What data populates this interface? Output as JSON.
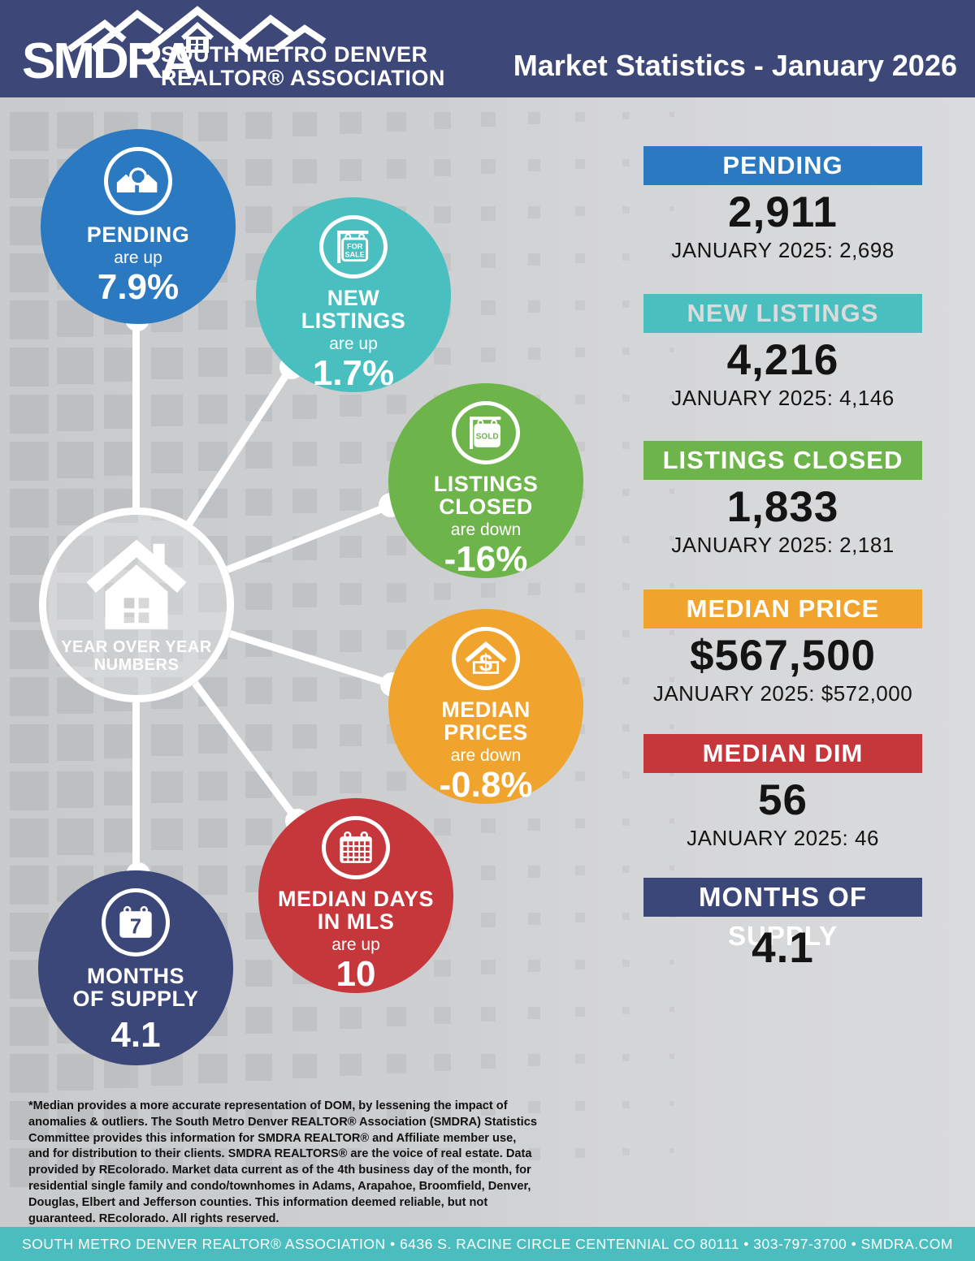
{
  "header": {
    "logo_text": "SMDRA",
    "org_line1": "SOUTH METRO DENVER",
    "org_line2": "REALTOR® ASSOCIATION",
    "title": "Market Statistics - January 2026"
  },
  "hub": {
    "icon": "house-icon",
    "label_line1": "YEAR OVER YEAR",
    "label_line2": "NUMBERS"
  },
  "bubbles": [
    {
      "id": "pending",
      "label1": "PENDING",
      "label2": "",
      "direction": "are up",
      "value": "7.9%",
      "color": "#2b7ac1",
      "icon": "houses-magnifier-icon"
    },
    {
      "id": "new-listings",
      "label1": "NEW",
      "label2": "LISTINGS",
      "direction": "are up",
      "value": "1.7%",
      "color": "#4abfc0",
      "icon": "for-sale-sign-icon",
      "sign_line1": "FOR",
      "sign_line2": "SALE"
    },
    {
      "id": "listings-closed",
      "label1": "LISTINGS",
      "label2": "CLOSED",
      "direction": "are down",
      "value": "-16%",
      "color": "#6db44a",
      "icon": "sold-sign-icon",
      "sign_text": "SOLD"
    },
    {
      "id": "median-prices",
      "label1": "MEDIAN",
      "label2": "PRICES",
      "direction": "are down",
      "value": "-0.8%",
      "color": "#f0a42e",
      "icon": "house-dollar-icon",
      "dollar": "$"
    },
    {
      "id": "median-days",
      "label1": "MEDIAN DAYS",
      "label2": "IN MLS",
      "direction": "are up",
      "value": "10",
      "color": "#c6373c",
      "icon": "calendar-grid-icon"
    },
    {
      "id": "months-of-supply",
      "label1": "MONTHS",
      "label2": "OF SUPPLY",
      "direction": "",
      "value": "4.1",
      "color": "#3b4679",
      "icon": "calendar-7-icon",
      "icon_text": "7"
    }
  ],
  "stats": [
    {
      "title": "PENDING",
      "value": "2,911",
      "prior": "JANUARY 2025: 2,698",
      "color": "#2b7ac1"
    },
    {
      "title": "NEW LISTINGS",
      "value": "4,216",
      "prior": "JANUARY 2025: 4,146",
      "color": "#4abfc0"
    },
    {
      "title": "LISTINGS CLOSED",
      "value": "1,833",
      "prior": "JANUARY 2025: 2,181",
      "color": "#6db44a"
    },
    {
      "title": "MEDIAN PRICE",
      "value": "$567,500",
      "prior": "JANUARY 2025: $572,000",
      "color": "#f0a42e"
    },
    {
      "title": "MEDIAN DIM",
      "value": "56",
      "prior": "JANUARY 2025: 46",
      "color": "#c6373c"
    },
    {
      "title": "MONTHS OF SUPPLY",
      "value": "4.1",
      "prior": "",
      "color": "#3b4679"
    }
  ],
  "disclaimer": "*Median provides a more accurate representation of DOM, by lessening the impact of anomalies & outliers. The South Metro Denver REALTOR® Association (SMDRA) Statistics Committee provides this information for SMDRA REALTOR® and Affiliate member use, and for distribution to their clients. SMDRA REALTORS® are the voice of real estate. Data provided by REcolorado. Market data current as of the 4th business day of the month, for residential single family and condo/townhomes in Adams, Arapahoe, Broomfield, Denver, Douglas, Elbert and Jefferson counties. This information deemed reliable, but not guaranteed. REcolorado. All rights reserved.",
  "footer": "SOUTH METRO DENVER REALTOR® ASSOCIATION  •  6436 S. RACINE CIRCLE CENTENNIAL CO 80111  •  303-797-3700  •  SMDRA.COM",
  "chart_data": {
    "type": "table",
    "title": "Market Statistics - January 2026",
    "categories": [
      "Pending",
      "New Listings",
      "Listings Closed",
      "Median Price",
      "Median DIM",
      "Months of Supply"
    ],
    "series": [
      {
        "name": "January 2026",
        "values": [
          2911,
          4216,
          1833,
          567500,
          56,
          4.1
        ]
      },
      {
        "name": "January 2025",
        "values": [
          2698,
          4146,
          2181,
          572000,
          46,
          null
        ]
      }
    ],
    "yoy_change": [
      "+7.9%",
      "+1.7%",
      "-16%",
      "-0.8%",
      "+10",
      null
    ]
  }
}
